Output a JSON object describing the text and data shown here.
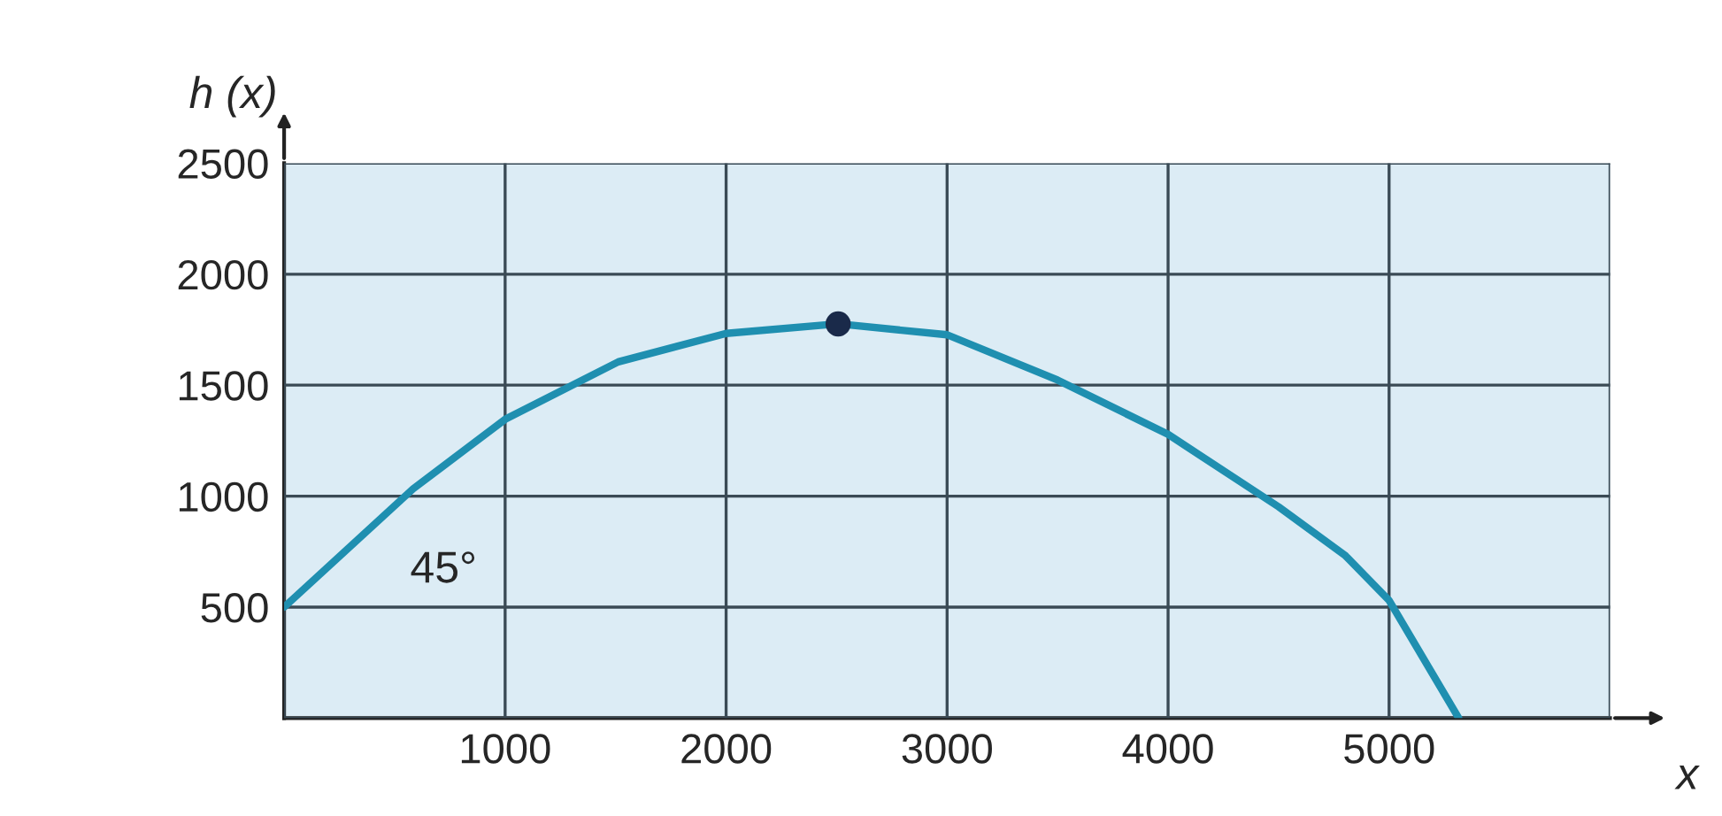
{
  "chart_data": {
    "type": "line",
    "xlabel": "x",
    "ylabel": "h (x)",
    "series": [
      {
        "color": "#1f8fb0",
        "x": [
          0,
          584,
          1000,
          1512,
          2000,
          2507,
          3000,
          3500,
          4000,
          4500,
          4800,
          5000,
          5315
        ],
        "values": [
          500,
          1033,
          1346,
          1605,
          1733,
          1776,
          1727,
          1523,
          1278,
          952,
          734,
          530,
          0
        ]
      },
      {
        "type": "scatter",
        "color": "#1a2a4a",
        "x": [
          2507
        ],
        "values": [
          1776
        ]
      }
    ],
    "xlim": [
      0,
      6000
    ],
    "ylim": [
      0,
      2500
    ],
    "xticks": [
      {
        "value": 0,
        "label": null
      },
      1000,
      2000,
      3000,
      4000,
      5000,
      {
        "value": 6000,
        "label": null
      }
    ],
    "yticks": [
      {
        "value": 0,
        "label": null
      },
      500,
      1000,
      1500,
      2000,
      2500
    ],
    "grid": true,
    "annotations": [
      "45°"
    ]
  }
}
